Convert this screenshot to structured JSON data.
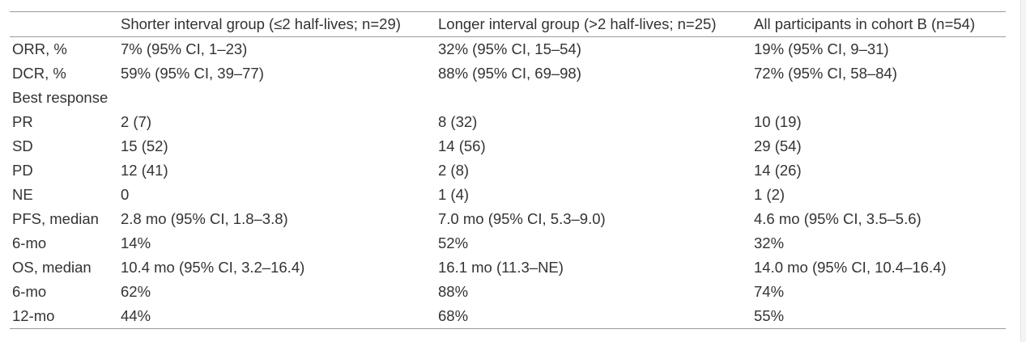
{
  "table": {
    "header": {
      "label": "",
      "columns": [
        "Shorter interval group (≤2 half-lives; n=29)",
        "Longer interval group (>2 half-lives; n=25)",
        "All participants in cohort B (n=54)"
      ]
    },
    "rows": [
      {
        "label": "ORR, %",
        "cells": [
          "7% (95% CI, 1–23)",
          "32% (95% CI, 15–54)",
          "19% (95% CI, 9–31)"
        ]
      },
      {
        "label": "DCR, %",
        "cells": [
          "59% (95% CI, 39–77)",
          "88% (95% CI, 69–98)",
          "72% (95% CI, 58–84)"
        ]
      },
      {
        "label": "Best response",
        "cells": [
          "",
          "",
          ""
        ]
      },
      {
        "label": "PR",
        "cells": [
          "2 (7)",
          "8 (32)",
          "10 (19)"
        ]
      },
      {
        "label": "SD",
        "cells": [
          "15 (52)",
          "14 (56)",
          "29 (54)"
        ]
      },
      {
        "label": "PD",
        "cells": [
          "12 (41)",
          "2 (8)",
          "14 (26)"
        ]
      },
      {
        "label": "NE",
        "cells": [
          "0",
          "1 (4)",
          "1 (2)"
        ]
      },
      {
        "label": "PFS, median",
        "cells": [
          "2.8 mo (95% CI, 1.8–3.8)",
          "7.0 mo (95% CI, 5.3–9.0)",
          "4.6 mo (95% CI, 3.5–5.6)"
        ]
      },
      {
        "label": "6-mo",
        "cells": [
          "14%",
          "52%",
          "32%"
        ]
      },
      {
        "label": "OS, median",
        "cells": [
          "10.4 mo (95% CI, 3.2–16.4)",
          "16.1 mo (11.3–NE)",
          "14.0 mo (95% CI, 10.4–16.4)"
        ]
      },
      {
        "label": "6-mo",
        "cells": [
          "62%",
          "88%",
          "74%"
        ]
      },
      {
        "label": "12-mo",
        "cells": [
          "44%",
          "68%",
          "55%"
        ]
      }
    ]
  }
}
